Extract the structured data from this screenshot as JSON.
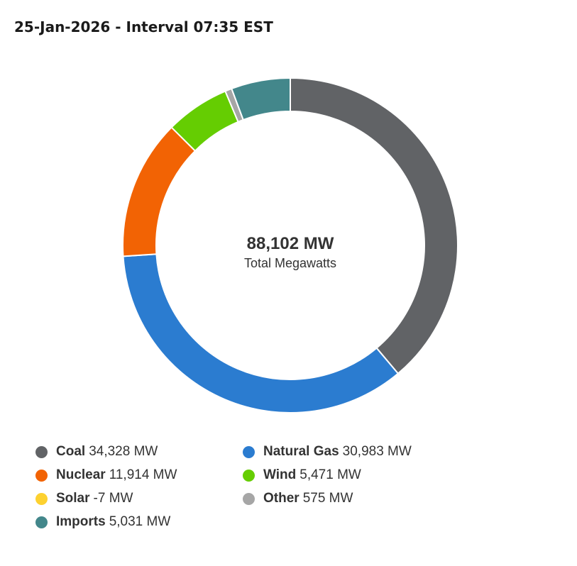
{
  "header": {
    "title": "25-Jan-2026 - Interval 07:35 EST"
  },
  "center": {
    "total": "88,102 MW",
    "caption": "Total Megawatts"
  },
  "chart_data": {
    "type": "pie",
    "variant": "donut",
    "title": "25-Jan-2026 - Interval 07:35 EST",
    "total_label": "88,102 MW",
    "total_caption": "Total Megawatts",
    "unit": "MW",
    "legend_position": "bottom",
    "series": [
      {
        "name": "Coal",
        "value": 34328,
        "label": "34,328 MW",
        "color": "#616366"
      },
      {
        "name": "Natural Gas",
        "value": 30983,
        "label": "30,983 MW",
        "color": "#2b7cd0"
      },
      {
        "name": "Nuclear",
        "value": 11914,
        "label": "11,914 MW",
        "color": "#f26304"
      },
      {
        "name": "Wind",
        "value": 5471,
        "label": "5,471 MW",
        "color": "#65cd02"
      },
      {
        "name": "Solar",
        "value": -7,
        "label": "-7 MW",
        "color": "#fdd130"
      },
      {
        "name": "Other",
        "value": 575,
        "label": "575 MW",
        "color": "#a6a6a6"
      },
      {
        "name": "Imports",
        "value": 5031,
        "label": "5,031 MW",
        "color": "#43878b"
      }
    ]
  }
}
